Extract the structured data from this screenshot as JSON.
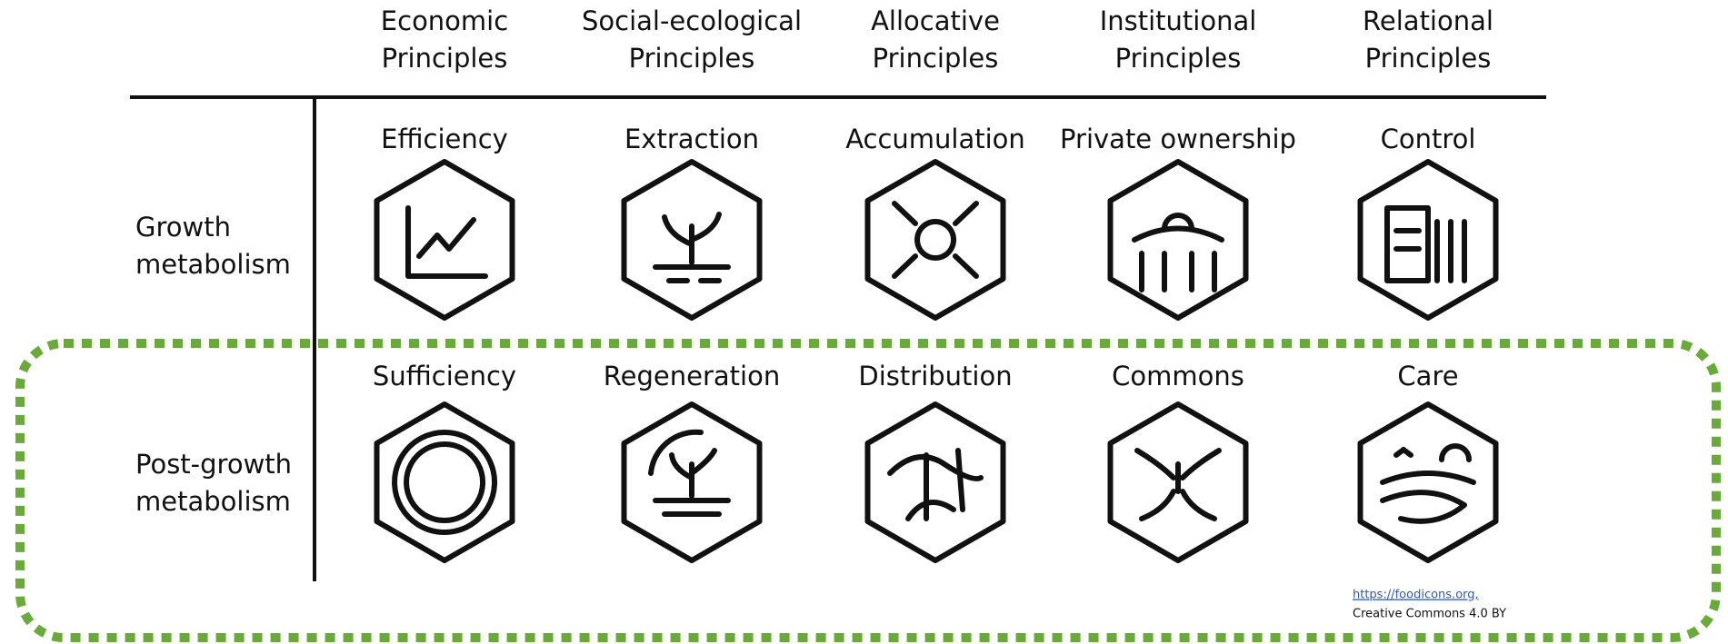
{
  "columns": [
    {
      "header": [
        "Economic",
        "Principles"
      ]
    },
    {
      "header": [
        "Social-ecological",
        "Principles"
      ]
    },
    {
      "header": [
        "Allocative",
        "Principles"
      ]
    },
    {
      "header": [
        "Institutional",
        "Principles"
      ]
    },
    {
      "header": [
        "Relational",
        "Principles"
      ]
    }
  ],
  "rows": [
    {
      "label": [
        "Growth",
        "metabolism"
      ],
      "cells": [
        "Efficiency",
        "Extraction",
        "Accumulation",
        "Private ownership",
        "Control"
      ]
    },
    {
      "label": [
        "Post-growth",
        "metabolism"
      ],
      "cells": [
        "Sufficiency",
        "Regeneration",
        "Distribution",
        "Commons",
        "Care"
      ]
    }
  ],
  "footer": {
    "link": "https://foodicons.org,",
    "license": "Creative Commons 4.0 BY"
  }
}
